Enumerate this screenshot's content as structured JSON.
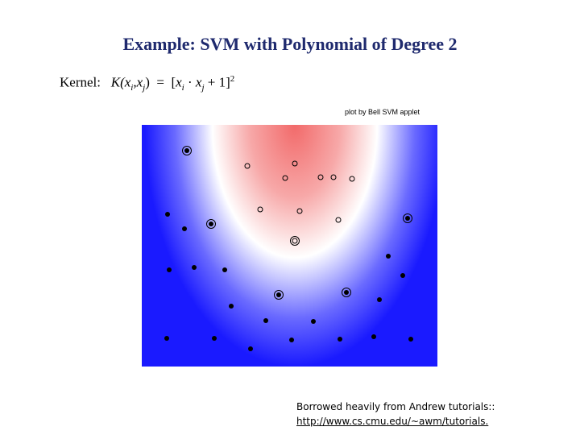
{
  "slide": {
    "title": "Example: SVM with Polynomial of Degree 2",
    "kernel": {
      "label": "Kernel:",
      "parts": [
        "K(",
        "x",
        "i",
        ",",
        "x",
        "j",
        ")  =  [",
        "x",
        "i",
        " · ",
        "x",
        "j",
        " + 1]",
        "2"
      ]
    },
    "plot_credit": "plot by Bell SVM applet",
    "footer": {
      "text": "Borrowed heavily from Andrew  tutorials::",
      "link": "http://www.cs.cmu.edu/~awm/tutorials."
    }
  }
}
